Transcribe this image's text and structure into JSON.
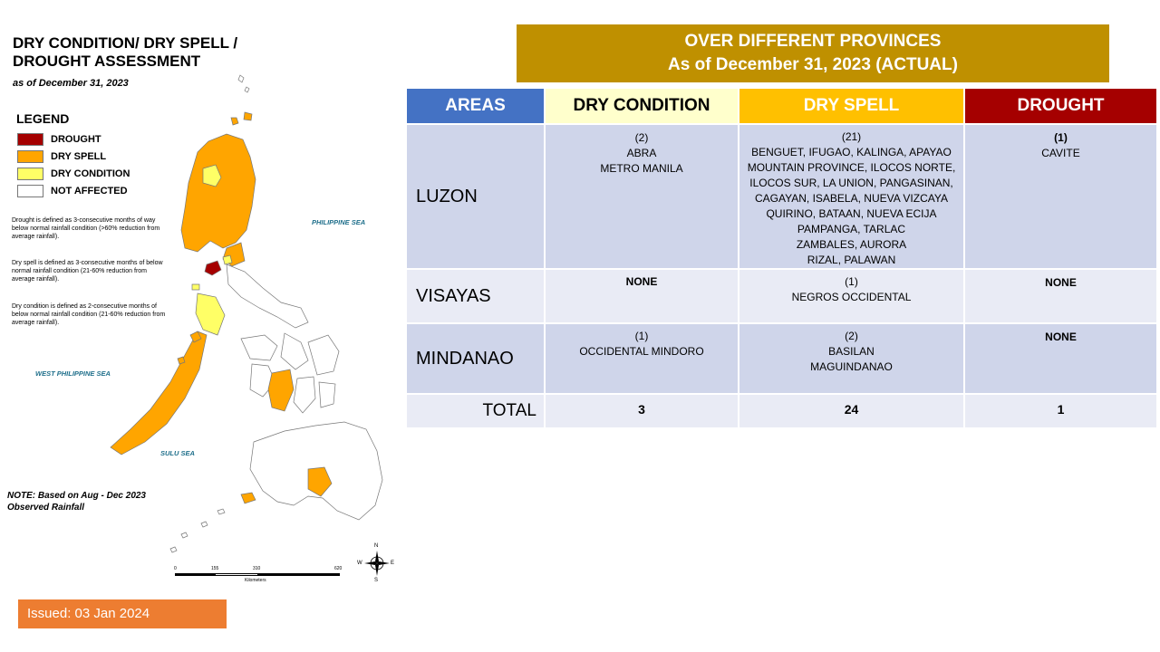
{
  "map_panel": {
    "title": "DRY CONDITION/ DRY SPELL / DROUGHT ASSESSMENT",
    "as_of": "as of December 31, 2023",
    "legend": {
      "title": "LEGEND",
      "items": [
        {
          "label": "DROUGHT",
          "color": "#a50000"
        },
        {
          "label": "DRY SPELL",
          "color": "#ffa500"
        },
        {
          "label": "DRY CONDITION",
          "color": "#ffff66"
        },
        {
          "label": "NOT AFFECTED",
          "color": "#ffffff"
        }
      ]
    },
    "definitions": [
      "Drought is defined as 3-consecutive months of way below normal rainfall condition (>60% reduction from average rainfall).",
      "Dry spell is defined as 3-consecutive months of below normal rainfall condition (21-60% reduction from average rainfall).",
      "Dry condition is defined as 2-consecutive months of below normal rainfall condition (21-60% reduction from average rainfall)."
    ],
    "seas": {
      "philippine_sea": "PHILIPPINE SEA",
      "west_philippine_sea": "WEST PHILIPPINE SEA",
      "sulu_sea": "SULU SEA"
    },
    "note": "NOTE: Based on Aug - Dec 2023 Observed Rainfall",
    "scale": {
      "ticks": [
        "0",
        "155",
        "310",
        "620"
      ],
      "unit": "Kilometers"
    },
    "compass": {
      "n": "N",
      "e": "E",
      "s": "S",
      "w": "W"
    }
  },
  "issued": "Issued: 03 Jan 2024",
  "banner": {
    "line1": "OVER DIFFERENT PROVINCES",
    "line2": "As of December 31, 2023 (ACTUAL)"
  },
  "table": {
    "headers": [
      {
        "label": "AREAS",
        "bg": "#4472c4",
        "fg": "#ffffff"
      },
      {
        "label": "DRY CONDITION",
        "bg": "#ffffcc",
        "fg": "#000000"
      },
      {
        "label": "DRY SPELL",
        "bg": "#ffc000",
        "fg": "#ffffff"
      },
      {
        "label": "DROUGHT",
        "bg": "#a50000",
        "fg": "#ffffff"
      }
    ],
    "rows": [
      {
        "area": "LUZON",
        "dry_condition": {
          "count": "(2)",
          "lines": [
            "ABRA",
            "METRO MANILA"
          ]
        },
        "dry_spell": {
          "count": "(21)",
          "lines": [
            "BENGUET, IFUGAO, KALINGA, APAYAO",
            "MOUNTAIN PROVINCE, ILOCOS NORTE,",
            "ILOCOS SUR, LA UNION, PANGASINAN,",
            "CAGAYAN, ISABELA, NUEVA VIZCAYA",
            "QUIRINO, BATAAN, NUEVA ECIJA",
            "PAMPANGA, TARLAC",
            "ZAMBALES, AURORA",
            "RIZAL, PALAWAN"
          ]
        },
        "drought": {
          "count": "(1)",
          "lines": [
            "CAVITE"
          ]
        }
      },
      {
        "area": "VISAYAS",
        "dry_condition": {
          "count": "NONE",
          "lines": []
        },
        "dry_spell": {
          "count": "(1)",
          "lines": [
            "NEGROS OCCIDENTAL"
          ]
        },
        "drought": {
          "count": "NONE",
          "lines": []
        }
      },
      {
        "area": "MINDANAO",
        "dry_condition": {
          "count": "(1)",
          "lines": [
            "OCCIDENTAL MINDORO"
          ]
        },
        "dry_spell": {
          "count": "(2)",
          "lines": [
            "BASILAN",
            "MAGUINDANAO"
          ]
        },
        "drought": {
          "count": "NONE",
          "lines": []
        }
      }
    ],
    "total": {
      "label": "TOTAL",
      "dry_condition": "3",
      "dry_spell": "24",
      "drought": "1"
    }
  }
}
